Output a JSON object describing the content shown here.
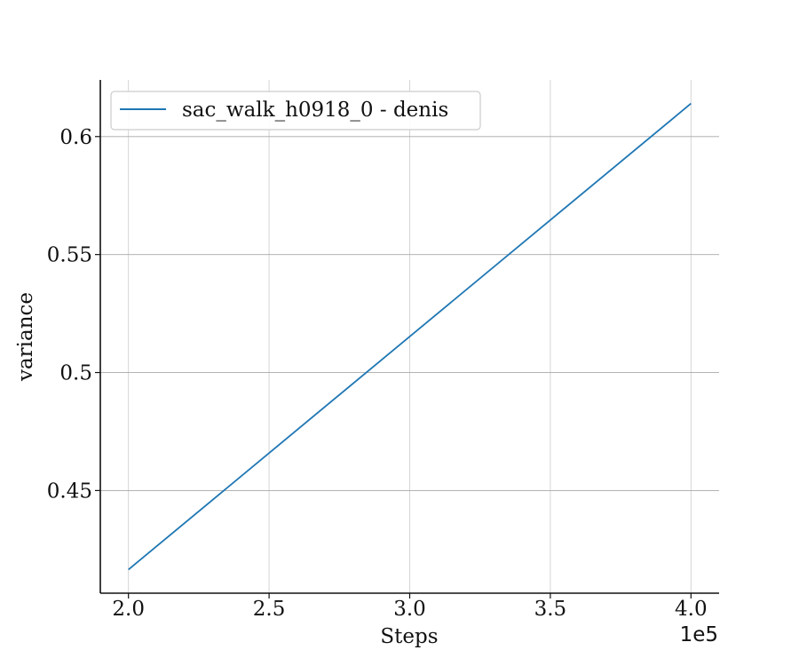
{
  "chart_data": {
    "type": "line",
    "xlabel": "Steps",
    "ylabel": "variance",
    "x_offset_label": "1e5",
    "xlim": [
      1.9,
      4.1
    ],
    "ylim": [
      0.4065,
      0.624
    ],
    "x_ticks": [
      2.0,
      2.5,
      3.0,
      3.5,
      4.0
    ],
    "x_tick_labels": [
      "2.0",
      "2.5",
      "3.0",
      "3.5",
      "4.0"
    ],
    "y_ticks": [
      0.45,
      0.5,
      0.55,
      0.6
    ],
    "y_tick_labels": [
      "0.45",
      "0.5",
      "0.55",
      "0.6"
    ],
    "grid": true,
    "legend_position": "top-left",
    "series": [
      {
        "name": "sac_walk_h0918_0 - denis",
        "color": "#1f77b4",
        "x": [
          2.0,
          4.0
        ],
        "y": [
          0.4165,
          0.614
        ]
      }
    ]
  }
}
